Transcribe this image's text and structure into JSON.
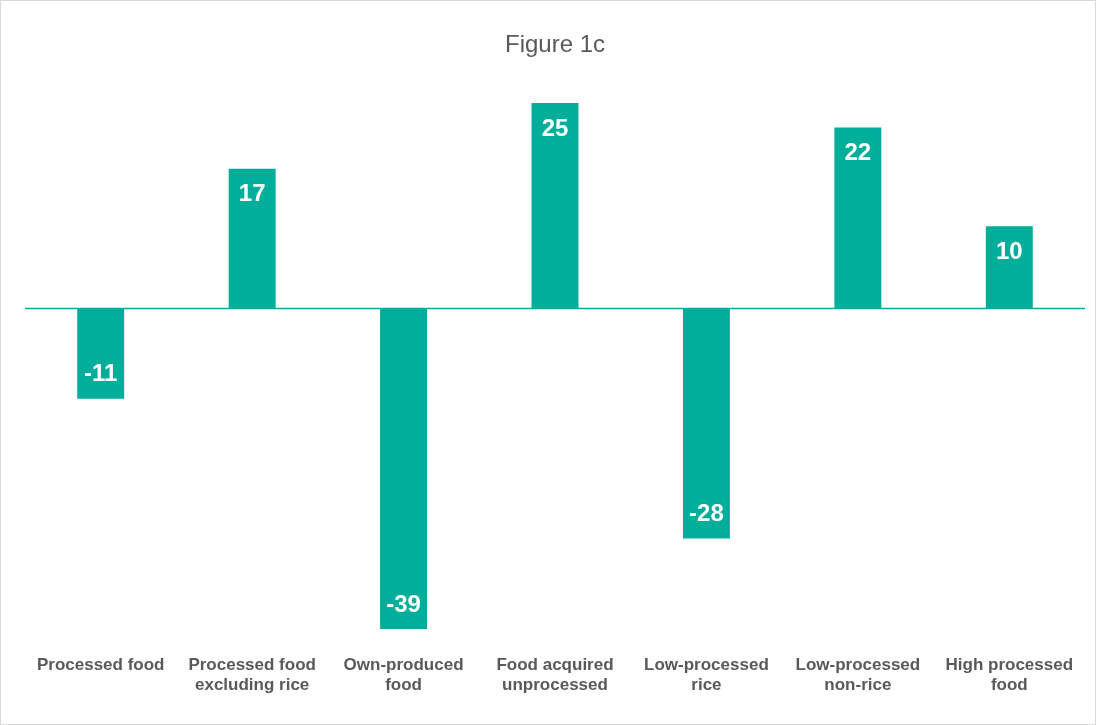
{
  "chart_data": {
    "type": "bar",
    "title": "Figure 1c",
    "categories": [
      "Processed food",
      "Processed food excluding rice",
      "Own-produced food",
      "Food acquired unprocessed",
      "Low-processed rice",
      "Low-processed non-rice",
      "High processed food"
    ],
    "values": [
      -11,
      17,
      -39,
      25,
      -28,
      22,
      10
    ],
    "color": "#00ae9a",
    "ref_lines": [
      {
        "axis": "y",
        "value": 0,
        "color": "#00ae9a"
      }
    ],
    "data_labels": true,
    "grid": false,
    "legend": false
  }
}
